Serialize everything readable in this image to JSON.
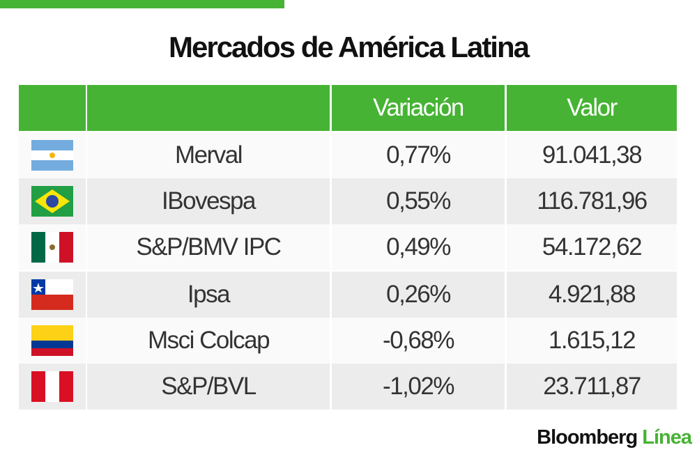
{
  "title": "Mercados de América Latina",
  "table": {
    "header": [
      "Variación",
      "Valor"
    ],
    "rows": [
      [
        "Merval",
        "0,77%",
        "91.041,38"
      ],
      [
        "IBovespa",
        "0,55%",
        "116.781,96"
      ],
      [
        "S&P/BMV IPC",
        "0,49%",
        "54.172,62"
      ],
      [
        "Ipsa",
        "0,26%",
        "4.921,88"
      ],
      [
        "Msci Colcap",
        "-0,68%",
        "1.615,12"
      ],
      [
        "S&P/BVL",
        "-1,02%",
        "23.711,87"
      ]
    ]
  },
  "brand": {
    "name": "Bloomberg",
    "sub": "Línea"
  }
}
